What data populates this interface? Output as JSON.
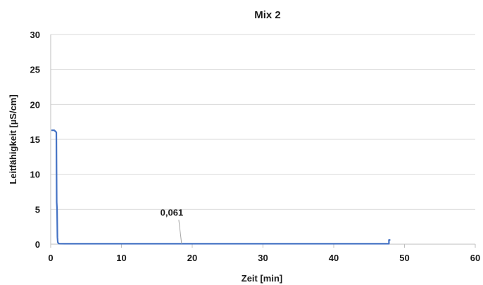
{
  "chart_data": {
    "type": "line",
    "title": "Mix 2",
    "xlabel": "Zeit [min]",
    "ylabel": "Leitfähigkeit [µS/cm]",
    "xlim": [
      0,
      60
    ],
    "ylim": [
      0,
      30
    ],
    "xticks": [
      0,
      10,
      20,
      30,
      40,
      50,
      60
    ],
    "yticks": [
      0,
      5,
      10,
      15,
      20,
      25,
      30
    ],
    "grid": "horizontal",
    "legend": "none",
    "series": [
      {
        "color": "#4472C4",
        "x": [
          0.1,
          0.5,
          0.8,
          0.85,
          0.9,
          0.95,
          1.0,
          1.1,
          1.3,
          2,
          5,
          10,
          20,
          30,
          40,
          47.8,
          47.8,
          48.0
        ],
        "y": [
          16.3,
          16.3,
          16.0,
          6.0,
          5.0,
          1.0,
          0.3,
          0.1,
          0.07,
          0.061,
          0.061,
          0.061,
          0.061,
          0.061,
          0.061,
          0.061,
          0.6,
          0.6
        ]
      }
    ],
    "annotations": [
      {
        "text": "0,061",
        "x": 18.5,
        "y": 0.061
      }
    ]
  },
  "colors": {
    "series": "#4472C4",
    "gridline": "#d9d9d9",
    "axis": "#bfbfbf"
  }
}
